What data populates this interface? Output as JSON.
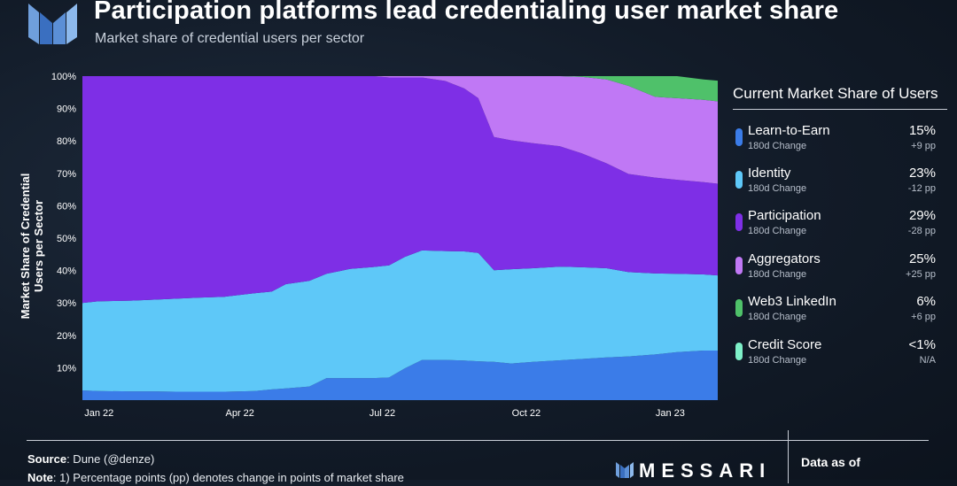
{
  "header": {
    "title": "Participation platforms lead credentialing user market share",
    "subtitle": "Market share of credential users per sector"
  },
  "legend_panel": {
    "title": "Current Market Share of Users",
    "items": [
      {
        "name": "Learn-to-Earn",
        "sub": "180d Change",
        "value": "15%",
        "change": "+9 pp",
        "color": "#3b7ce8"
      },
      {
        "name": "Identity",
        "sub": "180d Change",
        "value": "23%",
        "change": "-12 pp",
        "color": "#5ec8f8"
      },
      {
        "name": "Participation",
        "sub": "180d Change",
        "value": "29%",
        "change": "-28 pp",
        "color": "#7e2fe6"
      },
      {
        "name": "Aggregators",
        "sub": "180d Change",
        "value": "25%",
        "change": "+25 pp",
        "color": "#c078f5"
      },
      {
        "name": "Web3 LinkedIn",
        "sub": "180d Change",
        "value": "6%",
        "change": "+6 pp",
        "color": "#4fc16a"
      },
      {
        "name": "Credit Score",
        "sub": "180d Change",
        "value": "<1%",
        "change": "N/A",
        "color": "#7ef0c8"
      }
    ]
  },
  "footer": {
    "source_label": "Source",
    "source_text": ": Dune (@denze)",
    "note_label": "Note",
    "note_text": ": 1) Percentage points (pp) denotes change in points of market share",
    "brand": "MESSARI",
    "data_as_of_label": "Data as of"
  },
  "chart_data": {
    "type": "area",
    "stacked": true,
    "normalized": true,
    "ylabel": "Market Share of Credential Users per Sector",
    "ylim": [
      0,
      100
    ],
    "yticks": [
      "10%",
      "20%",
      "30%",
      "40%",
      "50%",
      "60%",
      "70%",
      "80%",
      "90%",
      "100%"
    ],
    "x_ticks": [
      "Jan 22",
      "Apr 22",
      "Jul 22",
      "Oct 22",
      "Jan 23"
    ],
    "x_range": [
      "2021-12-31",
      "2023-02-10"
    ],
    "x": [
      "2021-12-31",
      "2022-01-10",
      "2022-01-31",
      "2022-02-15",
      "2022-03-01",
      "2022-03-15",
      "2022-04-01",
      "2022-04-20",
      "2022-05-01",
      "2022-05-10",
      "2022-05-25",
      "2022-06-05",
      "2022-06-20",
      "2022-07-05",
      "2022-07-15",
      "2022-07-25",
      "2022-08-05",
      "2022-08-20",
      "2022-09-01",
      "2022-09-10",
      "2022-09-20",
      "2022-10-01",
      "2022-10-15",
      "2022-11-01",
      "2022-11-15",
      "2022-12-01",
      "2022-12-15",
      "2023-01-01",
      "2023-01-15",
      "2023-02-01",
      "2023-02-10"
    ],
    "series": [
      {
        "name": "Learn-to-Earn",
        "color": "#3b7ce8",
        "values": [
          3,
          2.8,
          2.7,
          2.7,
          2.6,
          2.6,
          2.6,
          2.8,
          3.3,
          3.6,
          4.2,
          6.8,
          6.8,
          6.8,
          7,
          9.8,
          12.4,
          12.4,
          12.2,
          12,
          11.8,
          11.3,
          11.8,
          12.3,
          12.7,
          13.2,
          13.5,
          14.1,
          14.8,
          15.3,
          15.3
        ]
      },
      {
        "name": "Identity",
        "color": "#5ec8f8",
        "values": [
          27,
          27.7,
          28,
          28.3,
          28.7,
          29,
          29.3,
          30.2,
          30.2,
          32.2,
          32.6,
          32.2,
          33.7,
          34.3,
          34.6,
          34.4,
          33.8,
          33.6,
          33.7,
          33.4,
          28.3,
          29.1,
          28.9,
          28.9,
          28.3,
          27.5,
          26,
          25,
          24.2,
          23.5,
          23.2
        ]
      },
      {
        "name": "Participation",
        "color": "#7e2fe6",
        "values": [
          70,
          69.5,
          69.3,
          69,
          68.7,
          68.4,
          68.1,
          67,
          66.5,
          64.2,
          63.2,
          61,
          59.5,
          58.9,
          58,
          55.4,
          53.4,
          52.5,
          50.3,
          47.8,
          41.1,
          39.8,
          38.6,
          37.2,
          35.2,
          32.4,
          30.3,
          29.6,
          29,
          28.5,
          28.3
        ]
      },
      {
        "name": "Aggregators",
        "color": "#c078f5",
        "values": [
          0,
          0,
          0,
          0,
          0,
          0,
          0,
          0,
          0,
          0,
          0,
          0,
          0,
          0,
          0.4,
          0.4,
          0.4,
          1.5,
          3.8,
          6.8,
          18.8,
          19.8,
          20.7,
          21.6,
          23.6,
          25.9,
          27.2,
          24.9,
          25.2,
          25.4,
          25.4
        ]
      },
      {
        "name": "Web3 LinkedIn",
        "color": "#4fc16a",
        "values": [
          0,
          0,
          0,
          0,
          0,
          0,
          0,
          0,
          0,
          0,
          0,
          0,
          0,
          0,
          0,
          0,
          0,
          0,
          0,
          0,
          0,
          0,
          0,
          0,
          0.2,
          1,
          3,
          6.4,
          6.8,
          6.3,
          6.4
        ]
      },
      {
        "name": "Credit Score",
        "color": "#7ef0c8",
        "values": [
          0,
          0,
          0,
          0,
          0,
          0,
          0,
          0,
          0,
          0,
          0,
          0,
          0,
          0,
          0,
          0,
          0,
          0,
          0,
          0,
          0,
          0,
          0,
          0,
          0,
          0,
          0,
          0,
          0,
          0,
          0
        ]
      }
    ],
    "grid": false,
    "legend_placement": "right"
  }
}
